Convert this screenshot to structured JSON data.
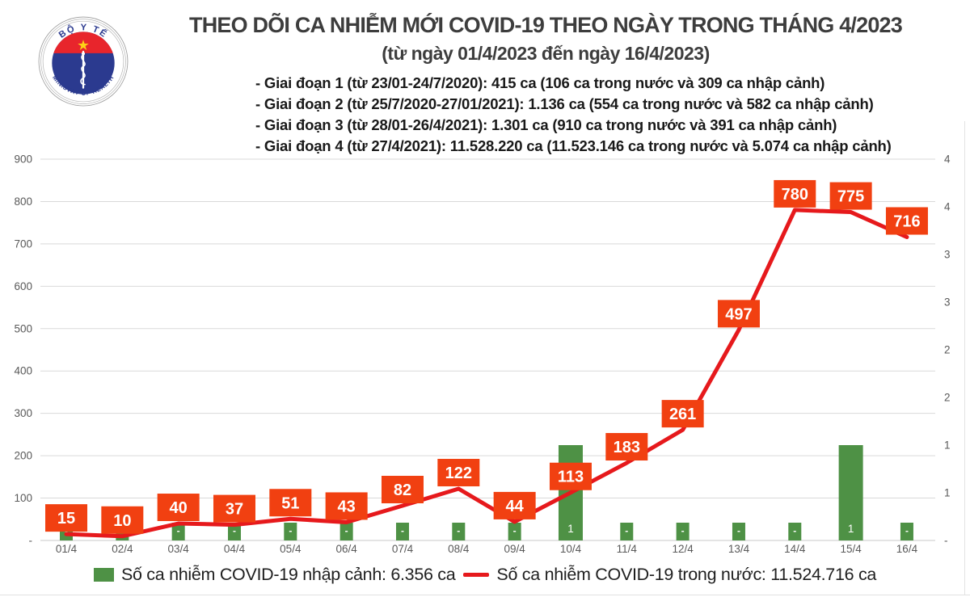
{
  "logo": {
    "top_text": "BỘ Y TẾ",
    "bottom_text": "MINISTRY OF HEALTH"
  },
  "header": {
    "title": "THEO DÕI CA NHIỄM MỚI COVID-19 THEO NGÀY TRONG THÁNG 4/2023",
    "subtitle": "(từ ngày 01/4/2023 đến ngày 16/4/2023)"
  },
  "phases": [
    "- Giai đoạn 1 (từ 23/01-24/7/2020): 415 ca (106 ca trong nước và 309 ca nhập cảnh)",
    "- Giai đoạn 2 (từ 25/7/2020-27/01/2021): 1.136 ca (554 ca trong nước và 582 ca nhập cảnh)",
    "- Giai đoạn 3 (từ 28/01-26/4/2021): 1.301 ca (910 ca trong nước và 391 ca nhập cảnh)",
    "- Giai đoạn 4 (từ 27/4/2021): 11.528.220 ca (11.523.146 ca trong nước và 5.074 ca nhập cảnh)"
  ],
  "chart_data": {
    "type": "combo",
    "title": "THEO DÕI CA NHIỄM MỚI COVID-19 THEO NGÀY TRONG THÁNG 4/2023",
    "categories": [
      "01/4",
      "02/4",
      "03/4",
      "04/4",
      "05/4",
      "06/4",
      "07/4",
      "08/4",
      "09/4",
      "10/4",
      "11/4",
      "12/4",
      "13/4",
      "14/4",
      "15/4",
      "16/4"
    ],
    "series": [
      {
        "name": "Số ca nhiễm COVID-19 nhập cảnh",
        "type": "bar",
        "axis": "right",
        "color": "#4e9145",
        "values": [
          0,
          0,
          0,
          0,
          0,
          0,
          0,
          0,
          0,
          1,
          0,
          0,
          0,
          0,
          1,
          0
        ],
        "labels": [
          "-",
          "-",
          "-",
          "-",
          "-",
          "-",
          "-",
          "-",
          "-",
          "1",
          "-",
          "-",
          "-",
          "-",
          "1",
          "-"
        ]
      },
      {
        "name": "Số ca nhiễm COVID-19 trong nước",
        "type": "line",
        "axis": "left",
        "color": "#e6191c",
        "label_box_color": "#f14011",
        "values": [
          15,
          10,
          40,
          37,
          51,
          43,
          82,
          122,
          44,
          113,
          183,
          261,
          497,
          780,
          775,
          716
        ]
      }
    ],
    "left_axis": {
      "min": 0,
      "max": 900,
      "step": 100,
      "ticks": [
        "900",
        "800",
        "700",
        "600",
        "500",
        "400",
        "300",
        "200",
        "100",
        "-"
      ]
    },
    "right_axis": {
      "min": 0,
      "max": 4,
      "ticks": [
        "4",
        "4",
        "3",
        "3",
        "2",
        "2",
        "1",
        "1",
        "-"
      ]
    },
    "grid": true,
    "legend_position": "bottom"
  },
  "legend": [
    {
      "label": "Số ca nhiễm COVID-19 nhập cảnh: 6.356 ca",
      "color": "#4e9145",
      "marker": "square"
    },
    {
      "label": "Số ca nhiễm COVID-19 trong nước: 11.524.716 ca",
      "color": "#e6191c",
      "marker": "dash"
    }
  ]
}
